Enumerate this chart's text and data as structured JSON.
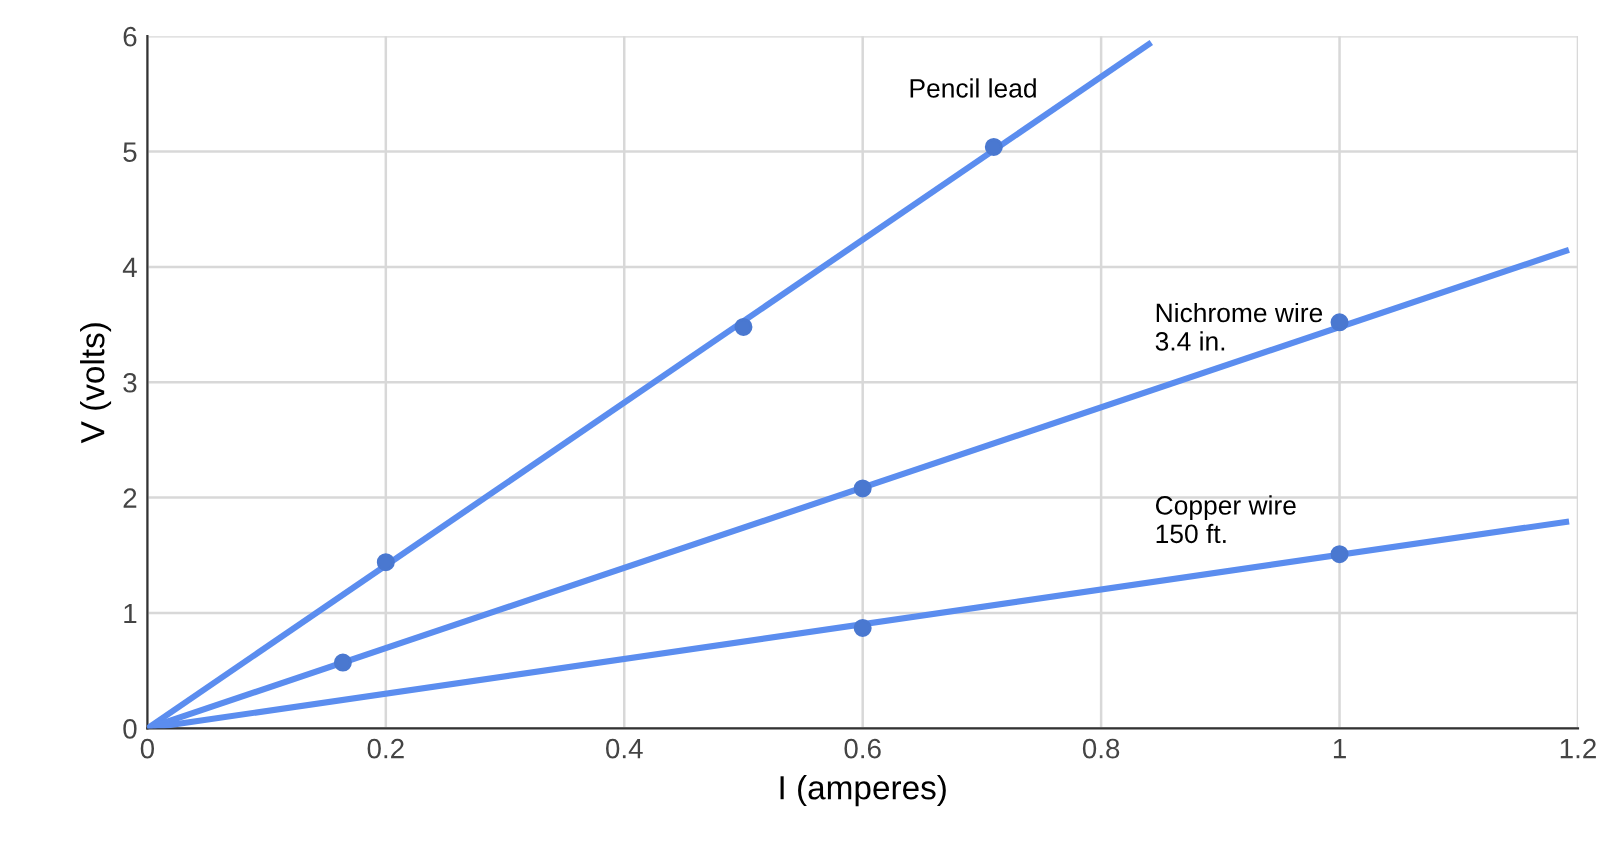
{
  "chart_data": {
    "type": "scatter",
    "xlabel": "I (amperes)",
    "ylabel": "V (volts)",
    "xlim": [
      0,
      1.2
    ],
    "ylim": [
      0,
      6
    ],
    "xticks": [
      0,
      0.2,
      0.4,
      0.6,
      0.8,
      1,
      1.2
    ],
    "yticks": [
      0,
      1,
      2,
      3,
      4,
      5,
      6
    ],
    "grid": true,
    "series": [
      {
        "type": "line",
        "name": "Pencil lead",
        "color": "#5b8def",
        "x": [
          0,
          0.84
        ],
        "values": [
          0,
          5.93
        ],
        "marker": "none"
      },
      {
        "type": "line",
        "name": "Nichrome wire\n3.4 in.",
        "color": "#5b8def",
        "x": [
          0,
          1.19
        ],
        "values": [
          0,
          4.14
        ],
        "marker": "none"
      },
      {
        "type": "line",
        "name": "Copper wire\n150 ft.",
        "color": "#5b8def",
        "x": [
          0,
          1.19
        ],
        "values": [
          0,
          1.79
        ],
        "marker": "none"
      },
      {
        "color": "#4a78d0",
        "x": [
          0.2,
          0.5,
          0.71
        ],
        "values": [
          1.44,
          3.48,
          5.04
        ],
        "marker": "circle"
      },
      {
        "color": "#4a78d0",
        "x": [
          0.164,
          0.6,
          1.0
        ],
        "values": [
          0.57,
          2.08,
          3.52
        ],
        "marker": "circle"
      },
      {
        "color": "#4a78d0",
        "x": [
          0.6,
          1.0
        ],
        "values": [
          0.87,
          1.51
        ],
        "marker": "circle"
      }
    ]
  }
}
